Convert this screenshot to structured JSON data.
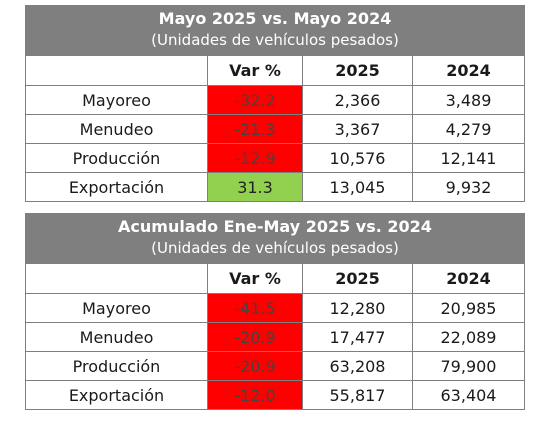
{
  "colors": {
    "header_bg": "#7f7f7f",
    "negative": "#ff0000",
    "positive": "#92d050"
  },
  "tables": [
    {
      "title": "Mayo 2025 vs. Mayo 2024",
      "subtitle": "(Unidades de vehículos pesados)",
      "columns": [
        "",
        "Var %",
        "2025",
        "2024"
      ],
      "rows": [
        {
          "label": "Mayoreo",
          "var": "-32.2",
          "y2025": "2,366",
          "y2024": "3,489"
        },
        {
          "label": "Menudeo",
          "var": "-21.3",
          "y2025": "3,367",
          "y2024": "4,279"
        },
        {
          "label": "Producción",
          "var": "-12.9",
          "y2025": "10,576",
          "y2024": "12,141"
        },
        {
          "label": "Exportación",
          "var": "31.3",
          "y2025": "13,045",
          "y2024": "9,932"
        }
      ]
    },
    {
      "title": "Acumulado Ene-May 2025 vs. 2024",
      "subtitle": "(Unidades de vehículos pesados)",
      "columns": [
        "",
        "Var %",
        "2025",
        "2024"
      ],
      "rows": [
        {
          "label": "Mayoreo",
          "var": "-41.5",
          "y2025": "12,280",
          "y2024": "20,985"
        },
        {
          "label": "Menudeo",
          "var": "-20.9",
          "y2025": "17,477",
          "y2024": "22,089"
        },
        {
          "label": "Producción",
          "var": "-20.9",
          "y2025": "63,208",
          "y2024": "79,900"
        },
        {
          "label": "Exportación",
          "var": "-12.0",
          "y2025": "55,817",
          "y2024": "63,404"
        }
      ]
    }
  ]
}
